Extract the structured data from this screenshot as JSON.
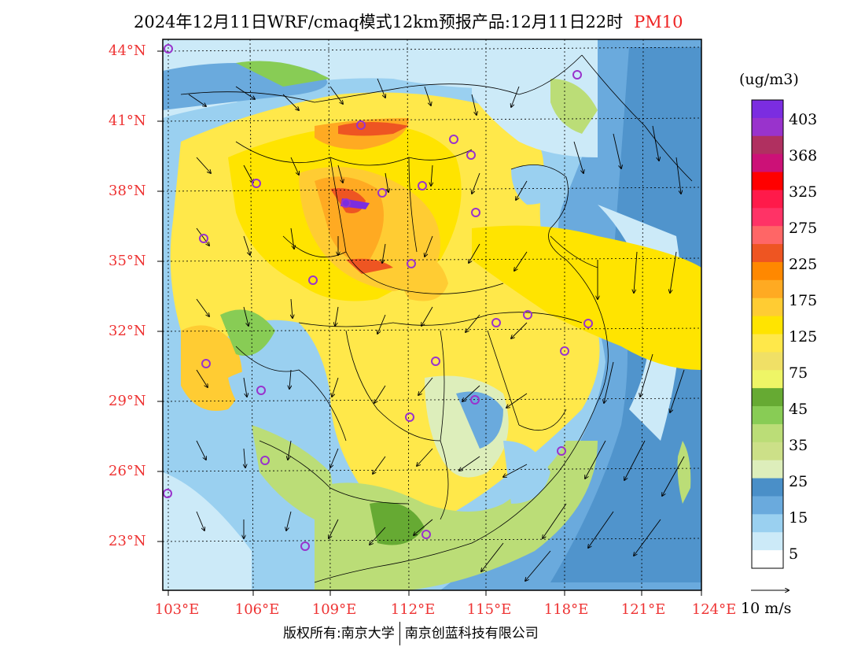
{
  "header": {
    "title": "2024年12月11日WRF/cmaq模式12km预报产品:12月11日22时",
    "variable": "PM10"
  },
  "map": {
    "lat_labels": [
      "44°N",
      "41°N",
      "38°N",
      "35°N",
      "32°N",
      "29°N",
      "26°N",
      "23°N"
    ],
    "lon_labels": [
      "103°E",
      "106°E",
      "109°E",
      "112°E",
      "115°E",
      "118°E",
      "121°E",
      "124°E"
    ],
    "extent": {
      "lon": [
        102.8,
        124.0
      ],
      "lat": [
        21.0,
        44.5
      ]
    }
  },
  "legend": {
    "unit": "(ug/m3)",
    "labels": [
      "403",
      "368",
      "325",
      "275",
      "225",
      "175",
      "125",
      "75",
      "45",
      "35",
      "25",
      "15",
      "5"
    ],
    "colors": [
      "#7b2de0",
      "#9933cc",
      "#b03060",
      "#cc1177",
      "#ff0000",
      "#ff1a4a",
      "#ff3366",
      "#ff6666",
      "#ee5522",
      "#ff8800",
      "#ffaa22",
      "#ffcc33",
      "#ffe400",
      "#ffe84a",
      "#f0e066",
      "#eef566",
      "#66aa33",
      "#88cc55",
      "#bbdd77",
      "#cce088",
      "#ddeebb",
      "#4a8fc8",
      "#6aaadd",
      "#9ad0f0",
      "#cceaf8",
      "#ffffff"
    ]
  },
  "wind_reference": {
    "label": "10 m/s"
  },
  "footer": {
    "left": "版权所有:南京大学",
    "right": "南京创蓝科技有限公司"
  }
}
